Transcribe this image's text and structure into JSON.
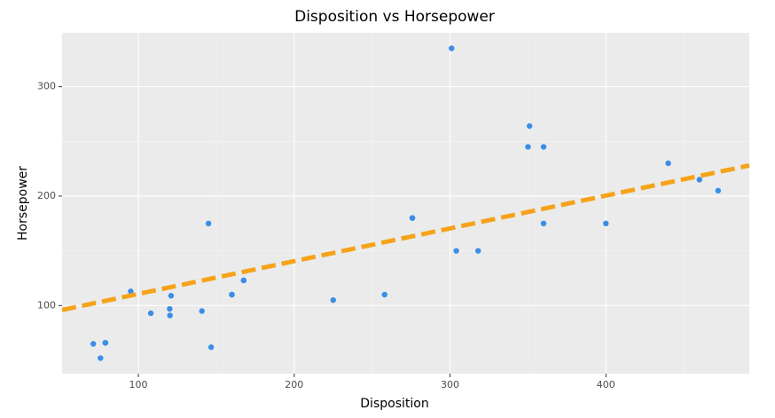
{
  "chart_data": {
    "type": "scatter",
    "title": "Disposition vs Horsepower",
    "x_label": "Disposition",
    "y_label": "Horsepower",
    "color": "#3a8ee6",
    "x": [
      160,
      160,
      108,
      258,
      360,
      225,
      360,
      146.7,
      140.8,
      167.6,
      167.6,
      275.8,
      275.8,
      275.8,
      472,
      460,
      440,
      78.7,
      75.7,
      71.1,
      120.1,
      318,
      304,
      350,
      400,
      79,
      120.3,
      95.1,
      351,
      145,
      301,
      121
    ],
    "values": [
      110,
      110,
      93,
      110,
      175,
      105,
      245,
      62,
      95,
      123,
      123,
      180,
      180,
      180,
      205,
      215,
      230,
      66,
      52,
      65,
      97,
      150,
      150,
      245,
      175,
      66,
      91,
      113,
      264,
      175,
      335,
      109
    ],
    "trend_line": {
      "color": "#f5a31a",
      "x": [
        51.06,
        492
      ],
      "y": [
        96,
        228
      ]
    },
    "xlim": [
      51.06,
      492
    ],
    "ylim": [
      37.85,
      349.15
    ],
    "xticks": [
      100,
      200,
      300,
      400
    ],
    "yticks": [
      100,
      200,
      300
    ],
    "x_minor_grid": [
      150,
      250,
      350,
      450
    ],
    "y_minor_grid": [
      50,
      150,
      250
    ],
    "grid": true
  }
}
